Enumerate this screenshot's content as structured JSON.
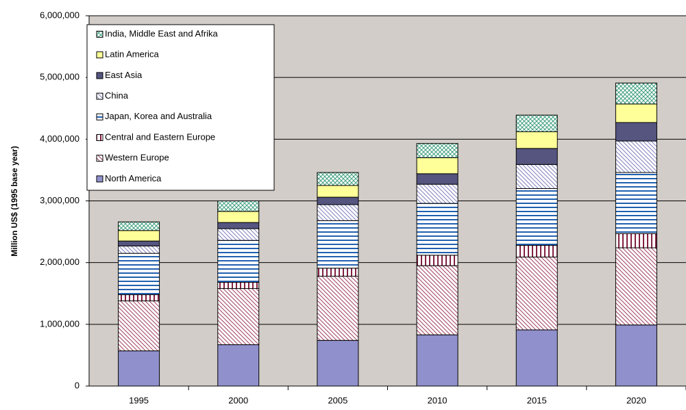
{
  "chart_data": {
    "type": "bar",
    "stacked": true,
    "y_label": "Million US$ (1995 base year)",
    "categories": [
      "1995",
      "2000",
      "2005",
      "2010",
      "2015",
      "2020"
    ],
    "ylim": [
      0,
      6000000
    ],
    "yticks": [
      0,
      {
        "value": 1000000,
        "label": "1,000,000"
      },
      {
        "value": 2000000,
        "label": "2,000,000"
      },
      {
        "value": 3000000,
        "label": "3,000,000"
      },
      {
        "value": 4000000,
        "label": "4,000,000"
      },
      {
        "value": 5000000,
        "label": "5,000,000"
      },
      {
        "value": 6000000,
        "label": "6,000,000"
      }
    ],
    "grid": true,
    "legend": "upper left",
    "series": [
      {
        "name": "North America",
        "color": "#9090cc",
        "hatch": "solid",
        "values": [
          570000,
          670000,
          740000,
          830000,
          910000,
          990000
        ]
      },
      {
        "name": "Western Europe",
        "color": "#a04060",
        "hatch": "diagonal",
        "values": [
          810000,
          910000,
          1040000,
          1120000,
          1180000,
          1250000
        ]
      },
      {
        "name": "Central and Eastern Europe",
        "color": "#802040",
        "hatch": "vertical",
        "values": [
          100000,
          100000,
          130000,
          170000,
          190000,
          230000
        ]
      },
      {
        "name": "Japan, Korea and Australia",
        "color": "#2060b0",
        "hatch": "horizontal",
        "values": [
          670000,
          680000,
          770000,
          840000,
          920000,
          990000
        ]
      },
      {
        "name": "China",
        "color": "#8080c0",
        "hatch": "diagonal",
        "values": [
          120000,
          190000,
          260000,
          310000,
          390000,
          510000
        ]
      },
      {
        "name": "East Asia",
        "color": "#555580",
        "hatch": "solid",
        "values": [
          80000,
          100000,
          120000,
          170000,
          260000,
          300000
        ]
      },
      {
        "name": "Latin America",
        "color": "#ffff99",
        "hatch": "solid",
        "values": [
          170000,
          180000,
          190000,
          260000,
          270000,
          300000
        ]
      },
      {
        "name": "India, Middle East and Afrika",
        "color": "#40a080",
        "hatch": "cross",
        "values": [
          140000,
          170000,
          210000,
          230000,
          270000,
          340000
        ]
      }
    ]
  }
}
